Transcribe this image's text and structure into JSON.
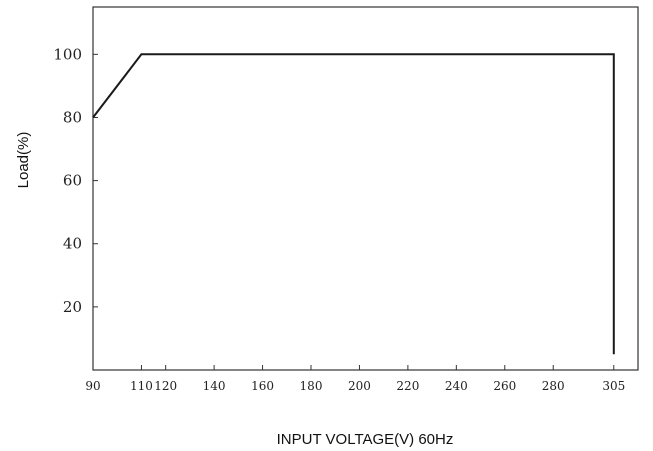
{
  "chart_data": {
    "type": "line",
    "title": "",
    "xlabel": "INPUT VOLTAGE(V) 60Hz",
    "ylabel": "Load(%)",
    "x_ticks": [
      "90",
      "110",
      "120",
      "140",
      "160",
      "180",
      "200",
      "220",
      "240",
      "260",
      "280",
      "305"
    ],
    "y_ticks": [
      "20",
      "40",
      "60",
      "80",
      "100"
    ],
    "xlim": [
      90,
      315
    ],
    "ylim": [
      0,
      115
    ],
    "grid": false,
    "legend": "none",
    "line_color": "#1a1a1a",
    "series": [
      {
        "x": [
          90,
          110,
          305,
          305
        ],
        "y": [
          80,
          100,
          100,
          5
        ]
      }
    ]
  }
}
